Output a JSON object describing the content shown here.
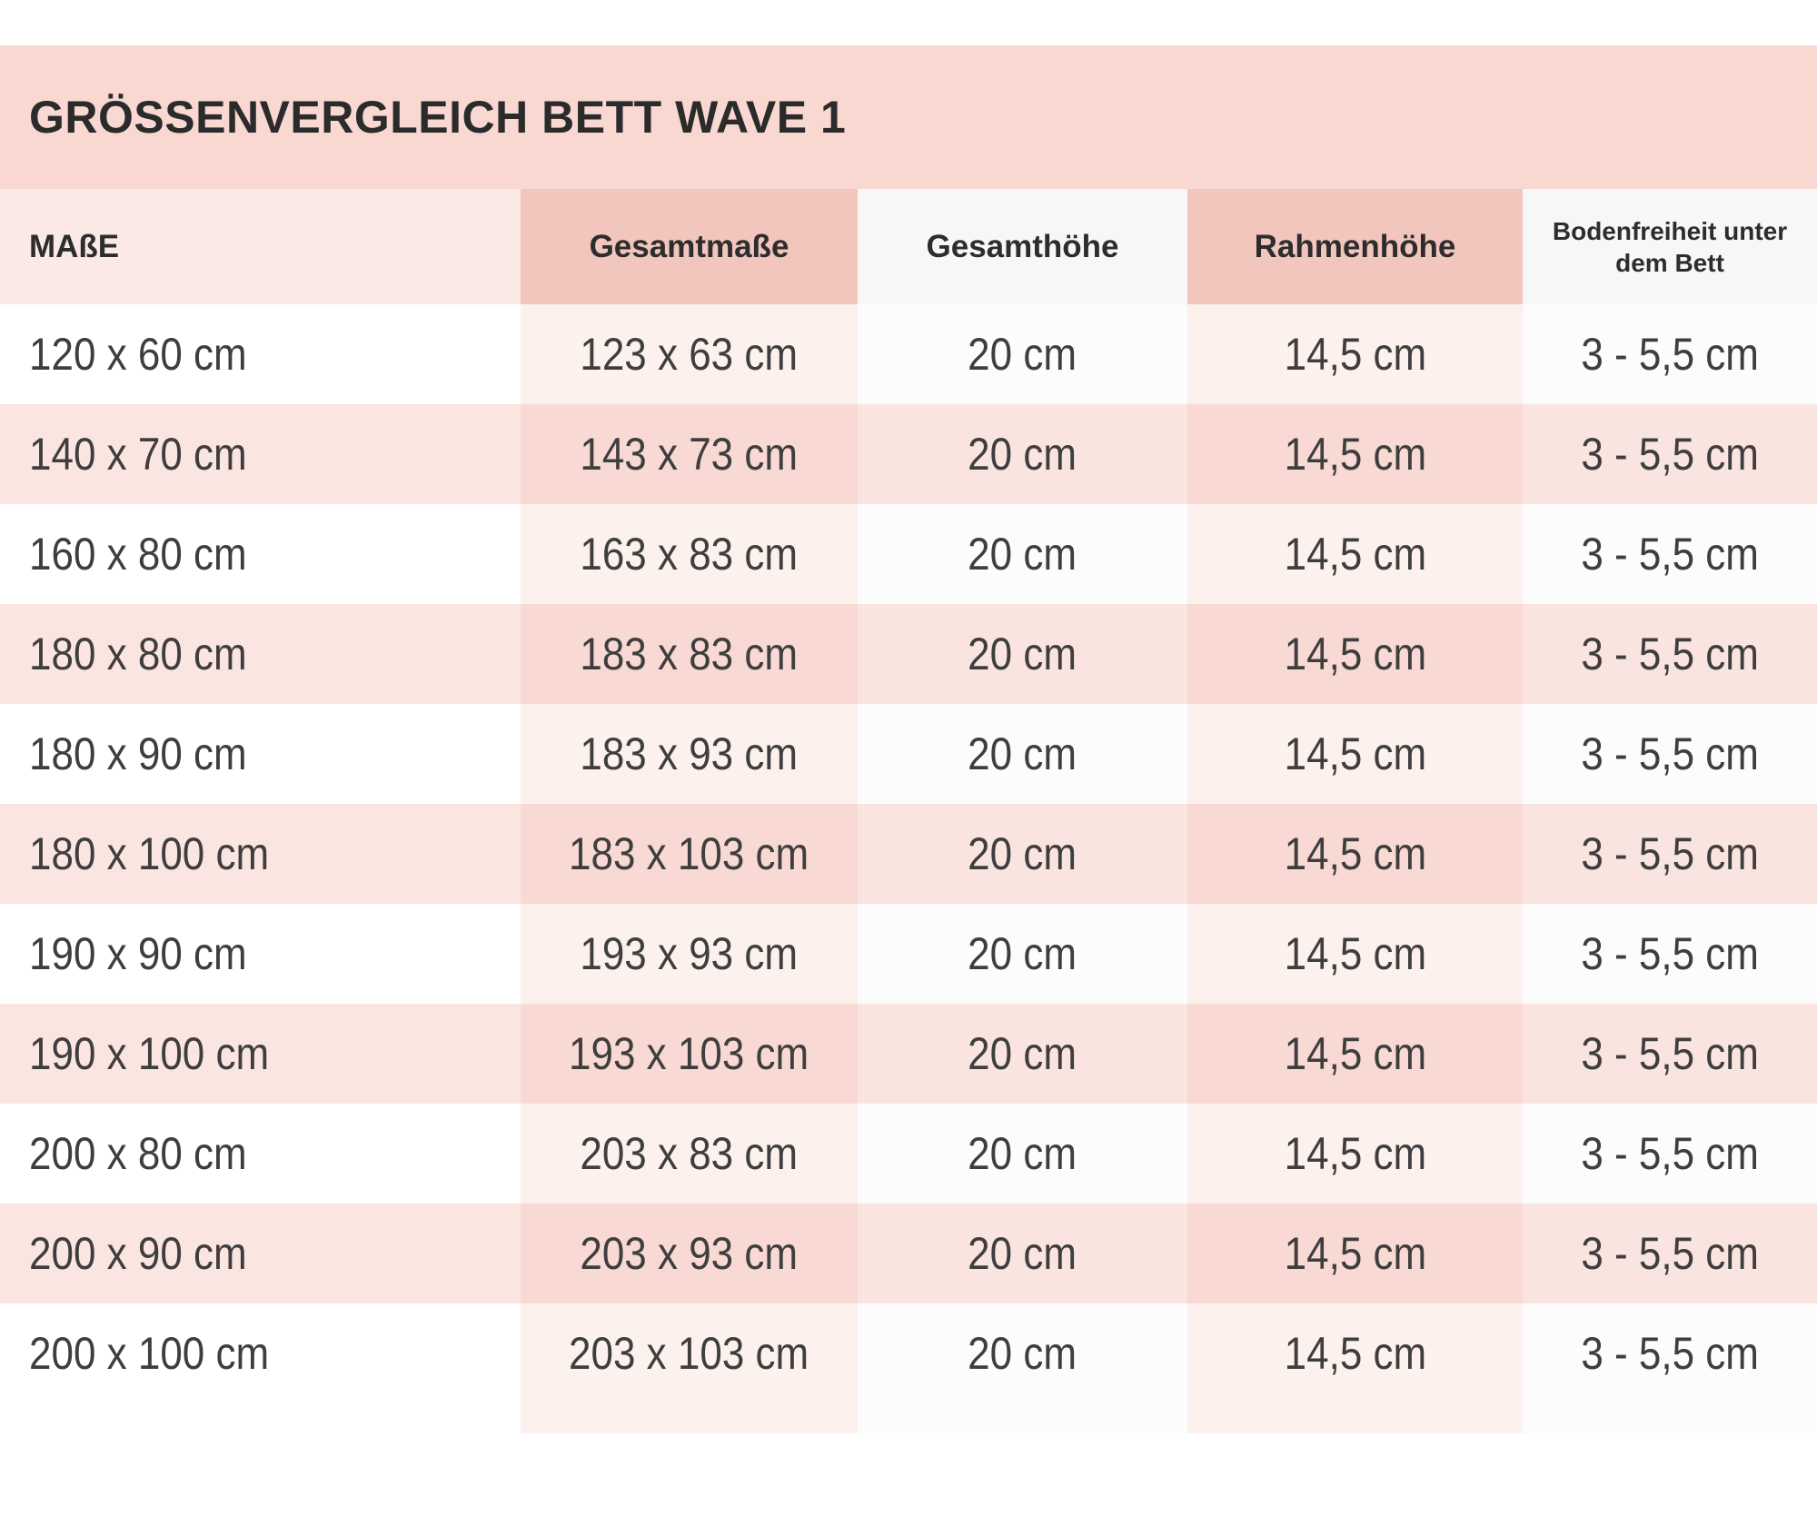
{
  "title": "GRÖSSENVERGLEICH BETT WAVE 1",
  "chart_data": {
    "type": "table",
    "title": "GRÖSSENVERGLEICH BETT WAVE 1",
    "columns": [
      {
        "id": "masse",
        "label": "MAßE",
        "align": "left",
        "small_header": false,
        "header_bg": "#fbe9e6",
        "cell_bg_odd": "#ffffff",
        "cell_bg_even": "#fbe5e1"
      },
      {
        "id": "gesamtmasse",
        "label": "Gesamtmaße",
        "align": "center",
        "small_header": false,
        "header_bg": "#f2c5bd",
        "cell_bg_odd": "#fdf1ee",
        "cell_bg_even": "#f8d9d3"
      },
      {
        "id": "gesamthoehe",
        "label": "Gesamthöhe",
        "align": "center",
        "small_header": false,
        "header_bg": "#f7f7f8",
        "cell_bg_odd": "#fcfcfd",
        "cell_bg_even": "#fae4e0"
      },
      {
        "id": "rahmenhoehe",
        "label": "Rahmenhöhe",
        "align": "center",
        "small_header": false,
        "header_bg": "#f2c5bd",
        "cell_bg_odd": "#fdf1ee",
        "cell_bg_even": "#f8d9d3"
      },
      {
        "id": "bodenfreiheit",
        "label": "Bodenfreiheit unter dem Bett",
        "align": "center",
        "small_header": true,
        "header_bg": "#f7f7f8",
        "cell_bg_odd": "#fcfcfd",
        "cell_bg_even": "#fae4e0"
      }
    ],
    "rows": [
      [
        "120 x 60 cm",
        "123 x 63 cm",
        "20 cm",
        "14,5 cm",
        "3 - 5,5 cm"
      ],
      [
        "140 x 70 cm",
        "143 x 73 cm",
        "20 cm",
        "14,5 cm",
        "3 - 5,5 cm"
      ],
      [
        "160 x 80 cm",
        "163 x 83 cm",
        "20 cm",
        "14,5 cm",
        "3 - 5,5 cm"
      ],
      [
        "180 x 80 cm",
        "183 x 83 cm",
        "20 cm",
        "14,5 cm",
        "3 - 5,5 cm"
      ],
      [
        "180 x 90 cm",
        "183 x 93 cm",
        "20 cm",
        "14,5 cm",
        "3 - 5,5 cm"
      ],
      [
        "180 x 100 cm",
        "183 x 103 cm",
        "20 cm",
        "14,5 cm",
        "3 - 5,5 cm"
      ],
      [
        "190 x 90 cm",
        "193 x 93 cm",
        "20 cm",
        "14,5 cm",
        "3 - 5,5 cm"
      ],
      [
        "190 x 100 cm",
        "193 x 103 cm",
        "20 cm",
        "14,5 cm",
        "3 - 5,5 cm"
      ],
      [
        "200 x 80 cm",
        "203 x 83 cm",
        "20 cm",
        "14,5 cm",
        "3 - 5,5 cm"
      ],
      [
        "200 x 90 cm",
        "203 x 93 cm",
        "20 cm",
        "14,5 cm",
        "3 - 5,5 cm"
      ],
      [
        "200 x 100 cm",
        "203 x 103 cm",
        "20 cm",
        "14,5 cm",
        "3 - 5,5 cm"
      ]
    ],
    "legend": "none",
    "grid": "row-striping"
  },
  "colors": {
    "title_bar_bg": "#f9d8d2",
    "header_pink_bg": "#f2c5bd",
    "header_light_pink_bg": "#fbe9e6",
    "header_gray_bg": "#f7f7f8",
    "row_white_bg": "#ffffff",
    "row_pink_bg": "#fbe5e1",
    "tint_col_on_white": "#fdf1ee",
    "tint_col_on_pink": "#f8d9d3",
    "title_text": "#2b2b2b",
    "header_text": "#2d2d2d",
    "cell_text": "#3f3e3e"
  }
}
